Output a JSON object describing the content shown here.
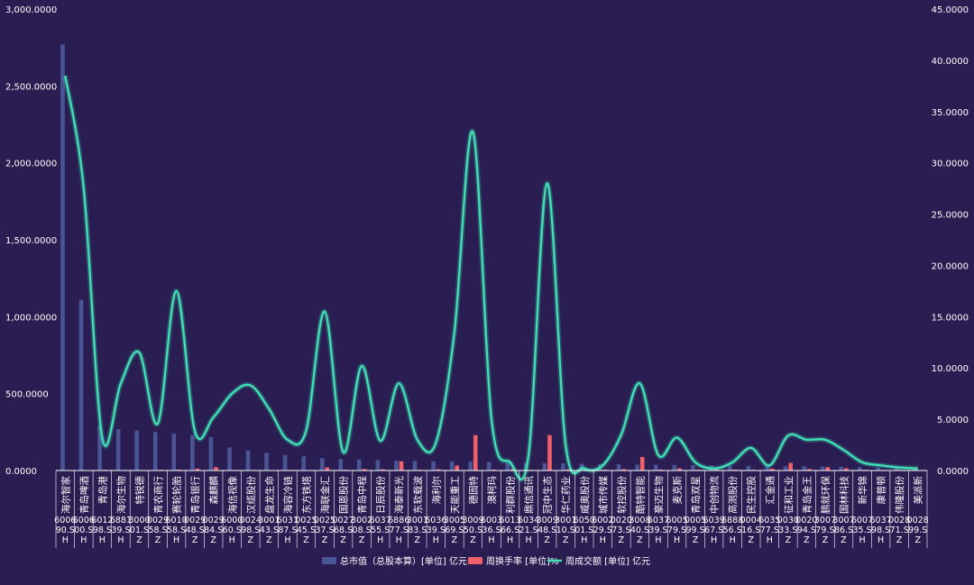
{
  "chart_data": {
    "type": "bar",
    "title": "",
    "xlabel": "",
    "ylabel": "",
    "ylim": [
      0,
      3000
    ],
    "y2lim": [
      0,
      45
    ],
    "y_ticks": [
      "0.0000",
      "500.0000",
      "1,000.0000",
      "1,500.0000",
      "2,000.0000",
      "2,500.0000",
      "3,000.0000"
    ],
    "y2_ticks": [
      "0.0000",
      "5.0000",
      "10.0000",
      "15.0000",
      "20.0000",
      "25.0000",
      "30.0000",
      "35.0000",
      "40.0000",
      "45.0000"
    ],
    "grid": false,
    "legend_position": "bottom",
    "colors": {
      "background": "#2a1d52",
      "market_cap": "#4a5596",
      "turnover": "#f0606a",
      "volume": "#3ee0b4"
    },
    "categories": [
      {
        "name": "海尔智家",
        "code_lines": [
          "6006",
          "90.S",
          "H"
        ]
      },
      {
        "name": "青岛啤酒",
        "code_lines": [
          "6006",
          "00.S",
          "H"
        ]
      },
      {
        "name": "青岛港",
        "code_lines": [
          "6012",
          "98.S",
          "H"
        ]
      },
      {
        "name": "海尔生物",
        "code_lines": [
          "6881",
          "39.S",
          "H"
        ]
      },
      {
        "name": "特锐德",
        "code_lines": [
          "3000",
          "01.S",
          "Z"
        ]
      },
      {
        "name": "青农商行",
        "code_lines": [
          "0029",
          "58.S",
          "Z"
        ]
      },
      {
        "name": "赛轮轮胎",
        "code_lines": [
          "6010",
          "58.S",
          "H"
        ]
      },
      {
        "name": "青岛银行",
        "code_lines": [
          "0029",
          "48.S",
          "Z"
        ]
      },
      {
        "name": "森麒麟",
        "code_lines": [
          "0029",
          "84.S",
          "Z"
        ]
      },
      {
        "name": "海信视像",
        "code_lines": [
          "6000",
          "60.S",
          "H"
        ]
      },
      {
        "name": "汉缆股份",
        "code_lines": [
          "0024",
          "98.S",
          "Z"
        ]
      },
      {
        "name": "盘龙生命",
        "code_lines": [
          "3001",
          "43.S",
          "Z"
        ]
      },
      {
        "name": "海容冷链",
        "code_lines": [
          "6031",
          "87.S",
          "H"
        ]
      },
      {
        "name": "东方铁塔",
        "code_lines": [
          "0025",
          "45.S",
          "Z"
        ]
      },
      {
        "name": "海联金汇",
        "code_lines": [
          "0025",
          "37.S",
          "Z"
        ]
      },
      {
        "name": "国恩股份",
        "code_lines": [
          "0027",
          "68.S",
          "Z"
        ]
      },
      {
        "name": "青岛中程",
        "code_lines": [
          "3002",
          "08.S",
          "Z"
        ]
      },
      {
        "name": "日辰股份",
        "code_lines": [
          "6037",
          "55.S",
          "H"
        ]
      },
      {
        "name": "海泰新光",
        "code_lines": [
          "6886",
          "77.S",
          "H"
        ]
      },
      {
        "name": "东软载波",
        "code_lines": [
          "3001",
          "83.S",
          "Z"
        ]
      },
      {
        "name": "海利尔",
        "code_lines": [
          "6036",
          "39.S",
          "H"
        ]
      },
      {
        "name": "天能重工",
        "code_lines": [
          "3005",
          "69.S",
          "Z"
        ]
      },
      {
        "name": "德固特",
        "code_lines": [
          "3009",
          "50.S",
          "Z"
        ]
      },
      {
        "name": "澳柯玛",
        "code_lines": [
          "6003",
          "36.S",
          "H"
        ]
      },
      {
        "name": "利群股份",
        "code_lines": [
          "6013",
          "66.S",
          "H"
        ]
      },
      {
        "name": "鼎信通讯",
        "code_lines": [
          "6034",
          "21.S",
          "H"
        ]
      },
      {
        "name": "冠中生态",
        "code_lines": [
          "3009",
          "48.S",
          "Z"
        ]
      },
      {
        "name": "华仁药业",
        "code_lines": [
          "3001",
          "10.S",
          "Z"
        ]
      },
      {
        "name": "威奥股份",
        "code_lines": [
          "6050",
          "01.S",
          "H"
        ]
      },
      {
        "name": "城市传媒",
        "code_lines": [
          "6002",
          "29.S",
          "H"
        ]
      },
      {
        "name": "软控股份",
        "code_lines": [
          "0020",
          "73.S",
          "Z"
        ]
      },
      {
        "name": "酷特智能",
        "code_lines": [
          "3008",
          "40.S",
          "Z"
        ]
      },
      {
        "name": "豪迈生物",
        "code_lines": [
          "6037",
          "39.S",
          "H"
        ]
      },
      {
        "name": "麦克斯",
        "code_lines": [
          "6005",
          "79.S",
          "H"
        ]
      },
      {
        "name": "青岛双星",
        "code_lines": [
          "0005",
          "99.S",
          "Z"
        ]
      },
      {
        "name": "中创物流",
        "code_lines": [
          "6039",
          "67.S",
          "H"
        ]
      },
      {
        "name": "高测股份",
        "code_lines": [
          "6888",
          "56.S",
          "H"
        ]
      },
      {
        "name": "民生控股",
        "code_lines": [
          "0004",
          "16.S",
          "Z"
        ]
      },
      {
        "name": "汇金通",
        "code_lines": [
          "6035",
          "77.S",
          "H"
        ]
      },
      {
        "name": "征和工业",
        "code_lines": [
          "0030",
          "33.S",
          "Z"
        ]
      },
      {
        "name": "青岛金王",
        "code_lines": [
          "0020",
          "94.S",
          "Z"
        ]
      },
      {
        "name": "鹏就环保",
        "code_lines": [
          "3007",
          "79.S",
          "Z"
        ]
      },
      {
        "name": "国林科技",
        "code_lines": [
          "3007",
          "86.S",
          "Z"
        ]
      },
      {
        "name": "新华锦",
        "code_lines": [
          "6007",
          "35.S",
          "H"
        ]
      },
      {
        "name": "康普顿",
        "code_lines": [
          "6037",
          "98.S",
          "H"
        ]
      },
      {
        "name": "伟隆股份",
        "code_lines": [
          "0028",
          "71.S",
          "Z"
        ]
      },
      {
        "name": "美派新",
        "code_lines": [
          "0028",
          "99.S",
          "Z"
        ]
      }
    ],
    "series": [
      {
        "name": "总市值（总股本算）[单位] 亿元",
        "type": "bar",
        "axis": "left",
        "values": [
          2770,
          1110,
          295,
          268,
          260,
          250,
          240,
          230,
          218,
          150,
          130,
          115,
          100,
          92,
          80,
          75,
          72,
          68,
          64,
          62,
          60,
          59,
          58,
          55,
          52,
          50,
          48,
          46,
          44,
          42,
          40,
          38,
          37,
          36,
          35,
          33,
          32,
          30,
          29,
          28,
          27,
          26,
          25,
          22,
          20,
          18,
          15
        ]
      },
      {
        "name": "周换手率 [单位]%",
        "type": "bar",
        "axis": "left",
        "values": [
          2,
          2,
          5,
          3,
          3,
          4,
          6,
          12,
          22,
          3,
          3,
          2,
          4,
          3,
          20,
          5,
          10,
          8,
          60,
          5,
          8,
          32,
          230,
          6,
          10,
          4,
          230,
          8,
          5,
          6,
          9,
          88,
          6,
          15,
          5,
          8,
          6,
          5,
          12,
          50,
          10,
          22,
          15,
          5,
          4,
          4,
          3
        ]
      },
      {
        "name": "周成交额 [单位] 亿元",
        "type": "line",
        "axis": "right",
        "values": [
          38.5,
          27.5,
          3.2,
          8.5,
          11.5,
          4.6,
          17.5,
          3.8,
          5.2,
          7.5,
          8.3,
          6.0,
          3.0,
          3.9,
          15.5,
          1.8,
          10.2,
          2.9,
          8.5,
          3.0,
          2.7,
          13.5,
          33.0,
          5.0,
          0.8,
          1.5,
          28.0,
          2.5,
          0.2,
          0.5,
          3.5,
          8.5,
          1.5,
          3.2,
          0.8,
          0.2,
          0.8,
          2.2,
          0.5,
          3.4,
          3.0,
          3.0,
          2.0,
          0.8,
          0.5,
          0.3,
          0.2
        ]
      }
    ]
  }
}
